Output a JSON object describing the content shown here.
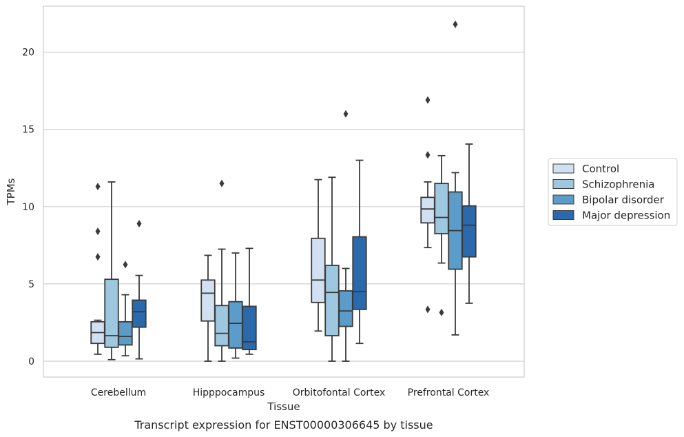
{
  "chart_data": {
    "type": "box",
    "xlabel": "Tissue",
    "ylabel": "TPMs",
    "caption": "Transcript expression for ENST00000306645 by tissue",
    "ylim": [
      -1.1,
      23
    ],
    "yticks": [
      0,
      5,
      10,
      15,
      20
    ],
    "grid": true,
    "legend_position": "right",
    "categories": [
      "Cerebellum",
      "Hipppocampus",
      "Orbitofontal Cortex",
      "Prefrontal Cortex"
    ],
    "series": [
      {
        "name": "Control",
        "color": "#d1e1f1",
        "boxes": [
          {
            "whislo": 0.45,
            "q1": 1.15,
            "med": 1.85,
            "q3": 2.55,
            "whishi": 2.65,
            "fliers": [
              6.75,
              8.4,
              11.3
            ]
          },
          {
            "whislo": 0.0,
            "q1": 2.6,
            "med": 4.4,
            "q3": 5.25,
            "whishi": 6.85,
            "fliers": []
          },
          {
            "whislo": 1.95,
            "q1": 3.8,
            "med": 5.25,
            "q3": 7.95,
            "whishi": 11.75,
            "fliers": []
          },
          {
            "whislo": 7.35,
            "q1": 8.95,
            "med": 9.85,
            "q3": 10.6,
            "whishi": 11.6,
            "fliers": [
              3.35,
              13.35,
              16.9
            ]
          }
        ]
      },
      {
        "name": "Schizophrenia",
        "color": "#9ec8e0",
        "boxes": [
          {
            "whislo": 0.1,
            "q1": 0.9,
            "med": 1.65,
            "q3": 5.3,
            "whishi": 11.6,
            "fliers": []
          },
          {
            "whislo": 0.0,
            "q1": 1.0,
            "med": 1.8,
            "q3": 3.6,
            "whishi": 7.25,
            "fliers": [
              11.5
            ]
          },
          {
            "whislo": 0.0,
            "q1": 1.65,
            "med": 4.45,
            "q3": 6.2,
            "whishi": 11.9,
            "fliers": []
          },
          {
            "whislo": 6.35,
            "q1": 8.25,
            "med": 9.3,
            "q3": 11.5,
            "whishi": 13.3,
            "fliers": [
              3.15
            ]
          }
        ]
      },
      {
        "name": "Bipolar disorder",
        "color": "#5b9ccb",
        "boxes": [
          {
            "whislo": 0.35,
            "q1": 1.05,
            "med": 1.6,
            "q3": 2.55,
            "whishi": 4.3,
            "fliers": [
              6.25
            ]
          },
          {
            "whislo": 0.2,
            "q1": 0.85,
            "med": 2.45,
            "q3": 3.85,
            "whishi": 7.0,
            "fliers": []
          },
          {
            "whislo": 0.0,
            "q1": 2.25,
            "med": 3.25,
            "q3": 4.55,
            "whishi": 6.0,
            "fliers": [
              16.0
            ]
          },
          {
            "whislo": 1.7,
            "q1": 5.95,
            "med": 8.45,
            "q3": 10.95,
            "whishi": 12.2,
            "fliers": [
              21.8
            ]
          }
        ]
      },
      {
        "name": "Major depression",
        "color": "#2a69ac",
        "boxes": [
          {
            "whislo": 0.15,
            "q1": 2.2,
            "med": 3.2,
            "q3": 3.95,
            "whishi": 5.55,
            "fliers": [
              8.9
            ]
          },
          {
            "whislo": 0.45,
            "q1": 0.75,
            "med": 1.25,
            "q3": 3.55,
            "whishi": 7.3,
            "fliers": []
          },
          {
            "whislo": 1.15,
            "q1": 3.35,
            "med": 4.5,
            "q3": 8.05,
            "whishi": 13.0,
            "fliers": []
          },
          {
            "whislo": 3.75,
            "q1": 6.75,
            "med": 8.8,
            "q3": 10.05,
            "whishi": 14.05,
            "fliers": []
          }
        ]
      }
    ]
  }
}
